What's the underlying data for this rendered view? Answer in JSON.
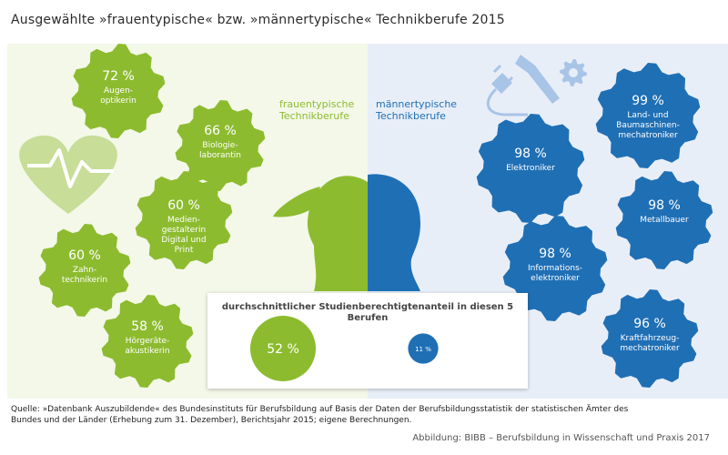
{
  "title": "Ausgewählte »frauentypische« bzw. »männertypische« Technikberufe 2015",
  "groups": {
    "female_label": "frauentypische Technikberufe",
    "male_label": "männertypische Technikberufe"
  },
  "colors": {
    "female": "#8dbb2f",
    "male": "#1f6fb5",
    "female_bg": "#f3f8e8",
    "male_bg": "#e8eef8",
    "icon_light_green": "#c7dd98",
    "icon_light_blue": "#a8c4e6"
  },
  "icons": [
    "heart-pulse-icon",
    "plug-icon",
    "wrench-icon",
    "cog-icon",
    "female-head-icon",
    "male-head-icon"
  ],
  "chart_data": [
    {
      "type": "bar",
      "title": "Ausgewählte »frauentypische« bzw. »männertypische« Technikberufe 2015",
      "unit": "%",
      "series": [
        {
          "name": "frauentypische Technikberufe",
          "categories": [
            "Augenoptikerin",
            "Biologielaborantin",
            "Mediengestalterin Digital und Print",
            "Zahntechnikerin",
            "Hörgeräteakustikerin"
          ],
          "labels": [
            "Augen-\noptikerin",
            "Biologie-\nlaborantin",
            "Medien-\ngestalterin\nDigital und\nPrint",
            "Zahn-\ntechnikerin",
            "Hörgeräte-\nakustikerin"
          ],
          "values": [
            72,
            66,
            60,
            60,
            58
          ]
        },
        {
          "name": "männertypische Technikberufe",
          "categories": [
            "Land- und Baumaschinenmechatroniker",
            "Elektroniker",
            "Metallbauer",
            "Informationselektroniker",
            "Kraftfahrzeugmechatroniker"
          ],
          "labels": [
            "Land- und\nBaumaschinen-\nmechatroniker",
            "Elektroniker",
            "Metallbauer",
            "Informations-\nelektroniker",
            "Kraftfahrzeug-\nmechatroniker"
          ],
          "values": [
            99,
            98,
            98,
            98,
            96
          ]
        }
      ]
    },
    {
      "type": "bar",
      "title": "durchschnittlicher Studienberechtigtenanteil in diesen 5 Berufen",
      "categories": [
        "frauentypische Technikberufe",
        "männertypische Technikberufe"
      ],
      "values": [
        52,
        11
      ],
      "unit": "%"
    }
  ],
  "source": "Quelle: »Datenbank Auszubildende« des Bundesinstituts für Berufsbildung auf Basis der Daten der Berufsbildungsstatistik der statistischen Ämter des Bundes und der Länder (Erhebung zum 31. Dezember), Berichtsjahr 2015; eigene Berechnungen.",
  "credit": "Abbildung: BIBB – Berufsbildung in Wissenschaft und Praxis 2017"
}
